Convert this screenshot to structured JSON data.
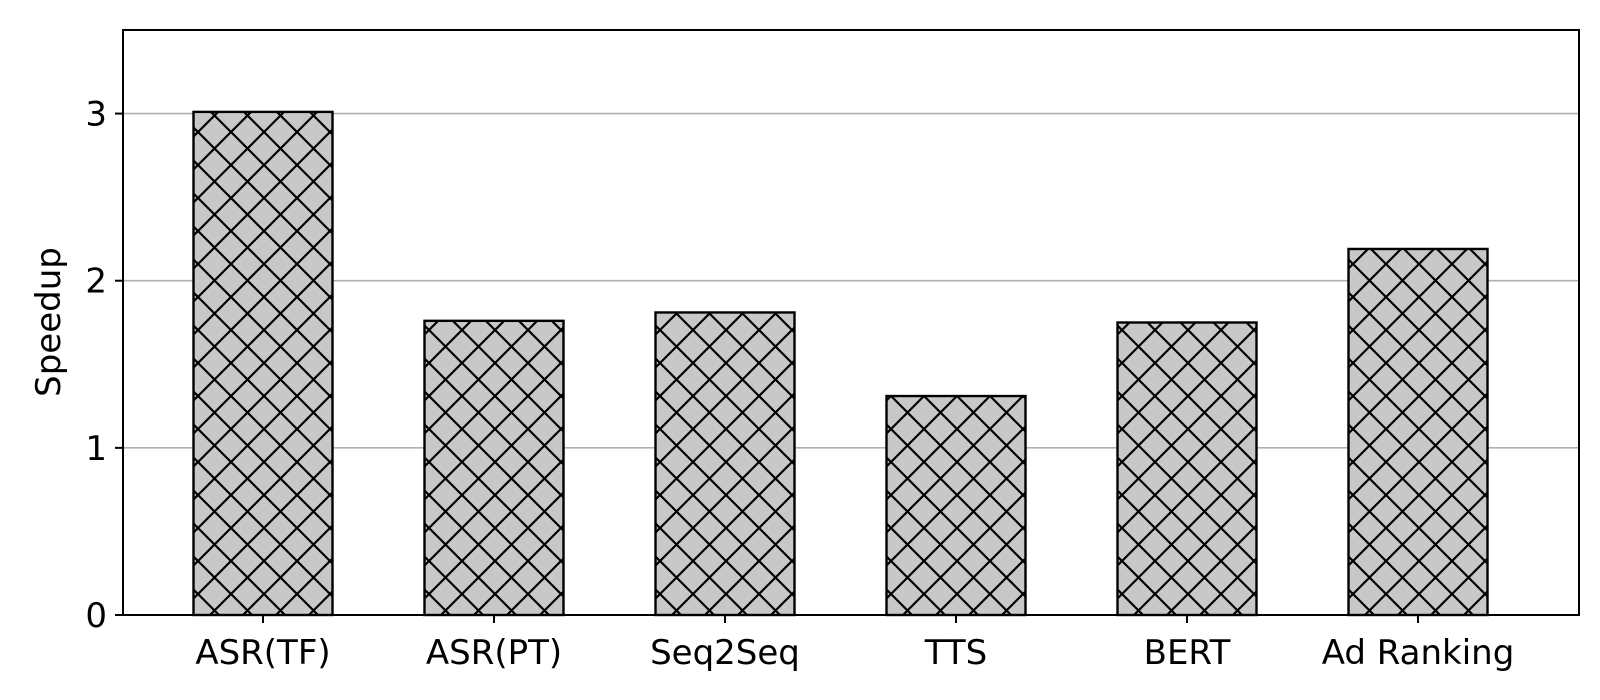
{
  "chart_data": {
    "type": "bar",
    "title": "",
    "xlabel": "",
    "ylabel": "Speedup",
    "categories": [
      "ASR(TF)",
      "ASR(PT)",
      "Seq2Seq",
      "TTS",
      "BERT",
      "Ad Ranking"
    ],
    "values": [
      3.01,
      1.76,
      1.81,
      1.31,
      1.75,
      2.19
    ],
    "ylim": [
      0,
      3.5
    ],
    "yticks": [
      "0",
      "1",
      "2",
      "3"
    ],
    "grid": "horizontal",
    "bar_fill": "#c8c8c8",
    "bar_edge": "#000000",
    "bar_pattern": "crosshatch",
    "grid_color": "#b0b0b0"
  }
}
